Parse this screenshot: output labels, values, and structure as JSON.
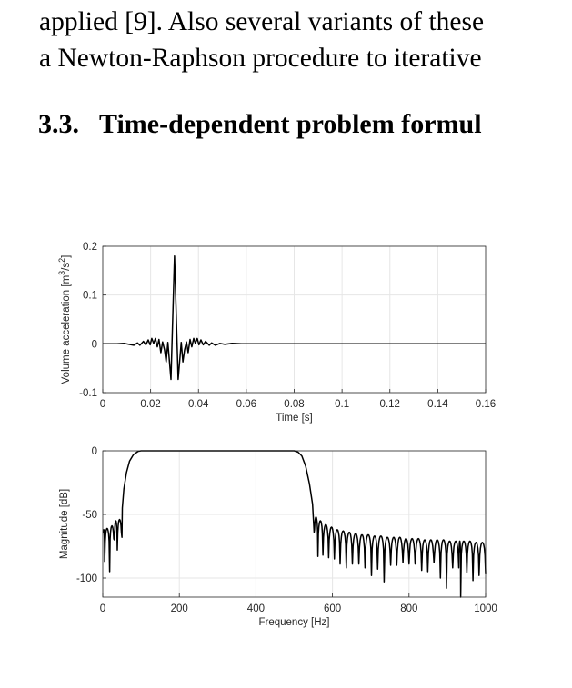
{
  "text": {
    "line1": "applied [9]. Also several variants of these",
    "line2": "a Newton-Raphson procedure to iterative",
    "heading_number": "3.3.",
    "heading_title": "Time-dependent problem formul"
  },
  "chart_data": [
    {
      "type": "line",
      "xlabel": "Time [s]",
      "ylabel": "Volume acceleration [m³/s²]",
      "ylabel_parts": {
        "main": "Volume acceleration [m",
        "sup1": "3",
        "mid": "/s",
        "sup2": "2",
        "end": "]"
      },
      "xlim": [
        0,
        0.16
      ],
      "ylim": [
        -0.1,
        0.2
      ],
      "xticks": [
        "0",
        "0.02",
        "0.04",
        "0.06",
        "0.08",
        "0.1",
        "0.12",
        "0.14",
        "0.16"
      ],
      "xtick_values": [
        0,
        0.02,
        0.04,
        0.06,
        0.08,
        0.1,
        0.12,
        0.14,
        0.16
      ],
      "yticks": [
        "-0.1",
        "0",
        "0.1",
        "0.2"
      ],
      "ytick_values": [
        -0.1,
        0,
        0.1,
        0.2
      ],
      "grid": true,
      "color": "#000000",
      "points": [
        [
          0,
          0
        ],
        [
          0.006,
          0
        ],
        [
          0.009,
          0.001
        ],
        [
          0.011,
          -0.001
        ],
        [
          0.013,
          -0.003
        ],
        [
          0.0145,
          0.002
        ],
        [
          0.0155,
          -0.003
        ],
        [
          0.017,
          0.005
        ],
        [
          0.018,
          -0.002
        ],
        [
          0.019,
          0.008
        ],
        [
          0.0198,
          -0.002
        ],
        [
          0.0205,
          0.011
        ],
        [
          0.0213,
          0.001
        ],
        [
          0.022,
          0.011
        ],
        [
          0.0228,
          -0.006
        ],
        [
          0.0235,
          0.009
        ],
        [
          0.0243,
          -0.018
        ],
        [
          0.025,
          0.004
        ],
        [
          0.0258,
          -0.012
        ],
        [
          0.0265,
          -0.037
        ],
        [
          0.0272,
          0.003
        ],
        [
          0.0285,
          -0.073
        ],
        [
          0.03,
          0.18
        ],
        [
          0.0315,
          -0.073
        ],
        [
          0.0328,
          0.003
        ],
        [
          0.0335,
          -0.037
        ],
        [
          0.0342,
          -0.012
        ],
        [
          0.035,
          0.004
        ],
        [
          0.0357,
          -0.018
        ],
        [
          0.0365,
          0.009
        ],
        [
          0.0372,
          -0.006
        ],
        [
          0.038,
          0.011
        ],
        [
          0.0387,
          0.001
        ],
        [
          0.0395,
          0.011
        ],
        [
          0.0402,
          -0.002
        ],
        [
          0.041,
          0.008
        ],
        [
          0.042,
          -0.002
        ],
        [
          0.043,
          0.005
        ],
        [
          0.0445,
          -0.003
        ],
        [
          0.0455,
          0.002
        ],
        [
          0.047,
          -0.003
        ],
        [
          0.049,
          0.001
        ],
        [
          0.051,
          -0.001
        ],
        [
          0.054,
          0.001
        ],
        [
          0.058,
          0
        ],
        [
          0.16,
          0
        ]
      ]
    },
    {
      "type": "line",
      "xlabel": "Frequency [Hz]",
      "ylabel": "Magnitude [dB]",
      "xlim": [
        0,
        1000
      ],
      "ylim": [
        -115,
        0
      ],
      "xticks": [
        "0",
        "200",
        "400",
        "600",
        "800",
        "1000"
      ],
      "xtick_values": [
        0,
        200,
        400,
        600,
        800,
        1000
      ],
      "yticks": [
        "-100",
        "-50",
        "0"
      ],
      "ytick_values": [
        -100,
        -50,
        0
      ],
      "grid": true,
      "color": "#000000",
      "left_sidelobes": {
        "nulls": [
          [
            0,
            -64
          ],
          [
            5,
            -87
          ],
          [
            18,
            -95
          ],
          [
            30,
            -70
          ],
          [
            38,
            -78
          ],
          [
            50,
            -68
          ]
        ],
        "peaks": [
          -62,
          -61,
          -59,
          -55,
          -54
        ]
      },
      "passband": [
        [
          50,
          -68
        ],
        [
          51,
          -45
        ],
        [
          55,
          -30
        ],
        [
          62,
          -17
        ],
        [
          70,
          -8
        ],
        [
          80,
          -3
        ],
        [
          92,
          -0.5
        ],
        [
          100,
          0
        ],
        [
          500,
          0
        ],
        [
          510,
          -1
        ],
        [
          520,
          -4
        ],
        [
          530,
          -12
        ],
        [
          540,
          -26
        ],
        [
          548,
          -42
        ],
        [
          552,
          -64
        ]
      ],
      "right_sidelobes": {
        "nulls": [
          [
            552,
            -64
          ],
          [
            562,
            -83
          ],
          [
            575,
            -82
          ],
          [
            590,
            -84
          ],
          [
            605,
            -85
          ],
          [
            620,
            -89
          ],
          [
            636,
            -92
          ],
          [
            652,
            -89
          ],
          [
            669,
            -89
          ],
          [
            685,
            -92
          ],
          [
            702,
            -98
          ],
          [
            718,
            -93
          ],
          [
            735,
            -103
          ],
          [
            752,
            -90
          ],
          [
            768,
            -90
          ],
          [
            784,
            -88
          ],
          [
            800,
            -89
          ],
          [
            816,
            -89
          ],
          [
            833,
            -94
          ],
          [
            849,
            -95
          ],
          [
            865,
            -88
          ],
          [
            882,
            -100
          ],
          [
            898,
            -108
          ],
          [
            914,
            -92
          ],
          [
            930,
            -92
          ],
          [
            935,
            -116
          ],
          [
            951,
            -96
          ],
          [
            967,
            -102
          ],
          [
            983,
            -98
          ],
          [
            1000,
            -97
          ]
        ],
        "peaks": [
          -52,
          -55,
          -58,
          -60,
          -62,
          -63,
          -64,
          -65,
          -66,
          -66,
          -67,
          -67,
          -68,
          -68,
          -68,
          -69,
          -69,
          -69,
          -70,
          -70,
          -70,
          -70,
          -71,
          -71,
          -71,
          -71,
          -71,
          -72,
          -72
        ]
      }
    }
  ]
}
